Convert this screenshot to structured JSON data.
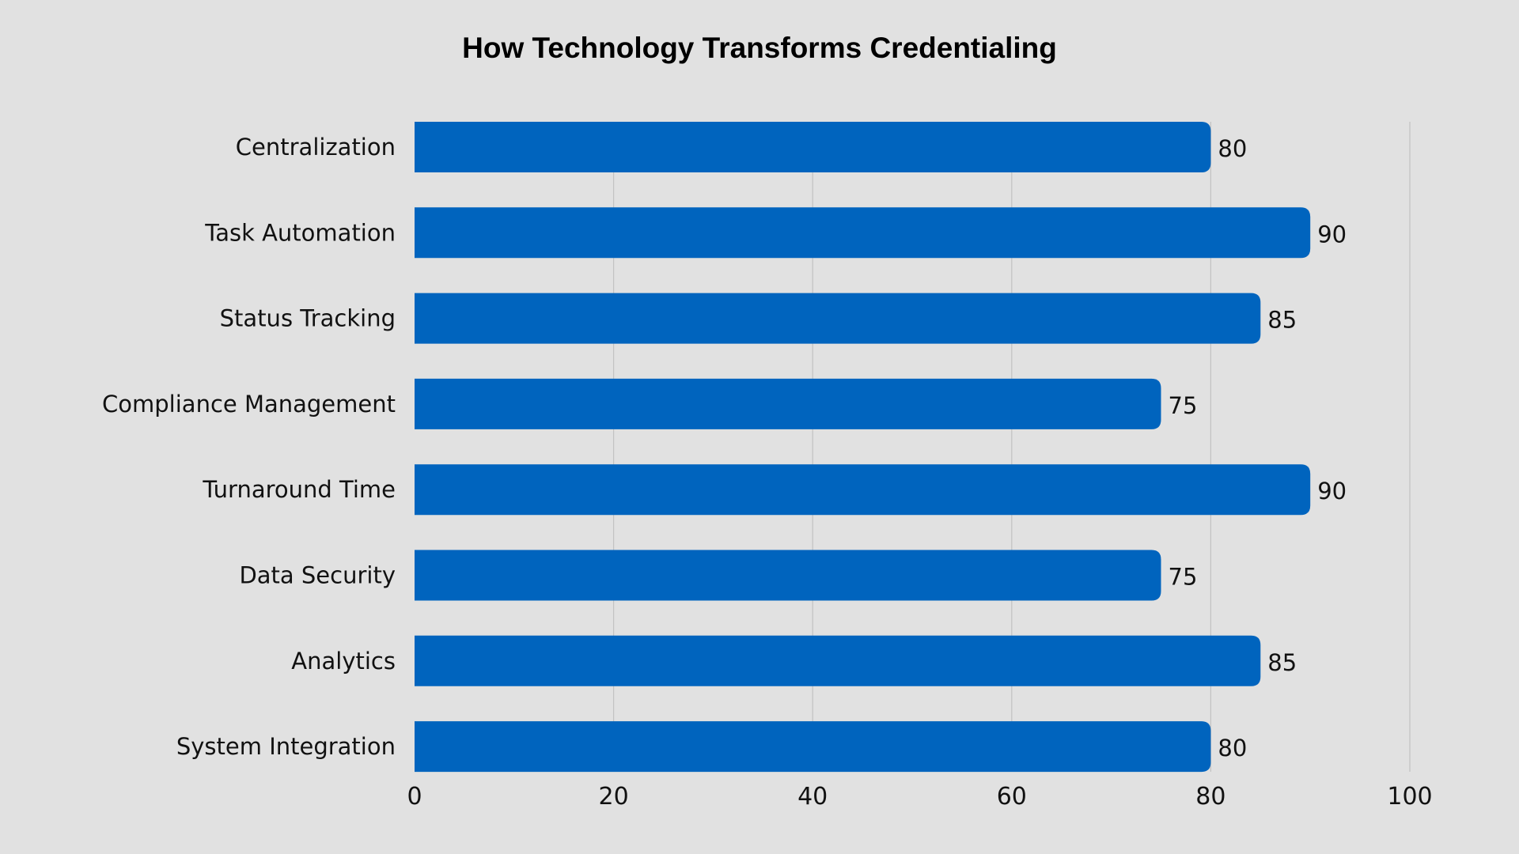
{
  "chart_data": {
    "type": "bar",
    "orientation": "horizontal",
    "title": "How Technology Transforms Credentialing",
    "categories": [
      "Centralization",
      "Task Automation",
      "Status Tracking",
      "Compliance Management",
      "Turnaround Time",
      "Data Security",
      "Analytics",
      "System Integration"
    ],
    "values": [
      80,
      90,
      85,
      75,
      90,
      75,
      85,
      80
    ],
    "xlim": [
      0,
      100
    ],
    "xticks": [
      0,
      20,
      40,
      60,
      80,
      100
    ],
    "xlabel": "",
    "ylabel": "",
    "grid": "vertical",
    "data_labels": true,
    "bar_color": "#0064be",
    "background_color": "#e1e1e1"
  }
}
